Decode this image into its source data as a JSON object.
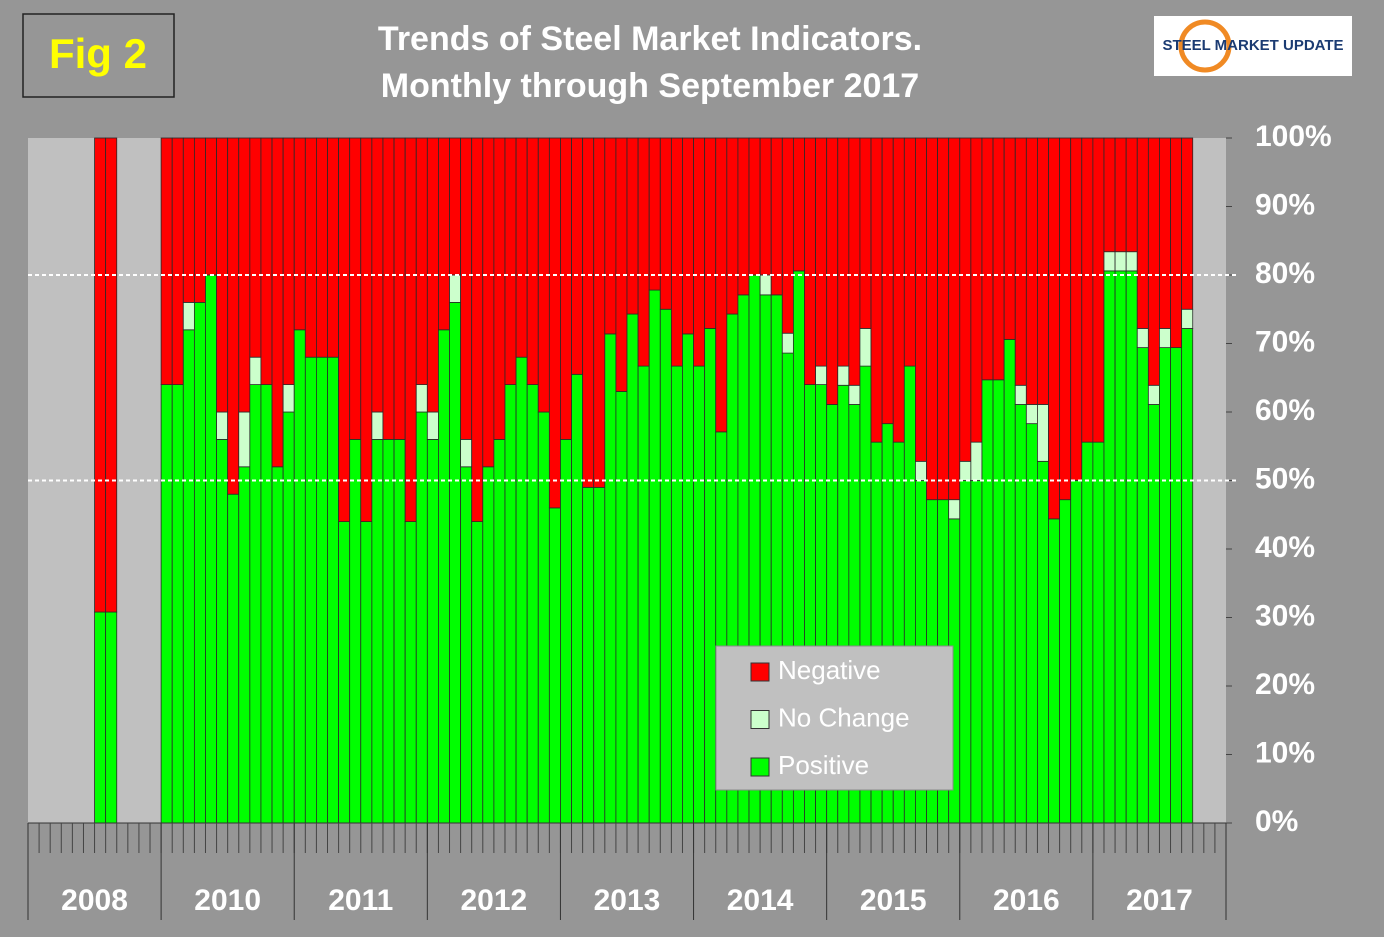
{
  "fig_label": "Fig 2",
  "logo": "STEEL MARKET UPDATE",
  "chart_data": {
    "type": "bar",
    "stacked": true,
    "title": "Trends of Steel Market Indicators.",
    "subtitle": "Monthly through  September 2017",
    "categories": [
      "2008",
      "2008",
      "2008",
      "2008",
      "2008",
      "2008",
      "2008",
      "2008",
      "2008",
      "2008",
      "2008",
      "2008",
      "2010",
      "2010",
      "2010",
      "2010",
      "2010",
      "2010",
      "2010",
      "2010",
      "2010",
      "2010",
      "2010",
      "2010",
      "2011",
      "2011",
      "2011",
      "2011",
      "2011",
      "2011",
      "2011",
      "2011",
      "2011",
      "2011",
      "2011",
      "2011",
      "2012",
      "2012",
      "2012",
      "2012",
      "2012",
      "2012",
      "2012",
      "2012",
      "2012",
      "2012",
      "2012",
      "2012",
      "2013",
      "2013",
      "2013",
      "2013",
      "2013",
      "2013",
      "2013",
      "2013",
      "2013",
      "2013",
      "2013",
      "2013",
      "2014",
      "2014",
      "2014",
      "2014",
      "2014",
      "2014",
      "2014",
      "2014",
      "2014",
      "2014",
      "2014",
      "2014",
      "2015",
      "2015",
      "2015",
      "2015",
      "2015",
      "2015",
      "2015",
      "2015",
      "2015",
      "2015",
      "2015",
      "2015",
      "2016",
      "2016",
      "2016",
      "2016",
      "2016",
      "2016",
      "2016",
      "2016",
      "2016",
      "2016",
      "2016",
      "2016",
      "2017",
      "2017",
      "2017",
      "2017",
      "2017",
      "2017",
      "2017",
      "2017",
      "2017",
      "2017",
      "2017",
      "2017"
    ],
    "series": [
      {
        "name": "Positive",
        "color": "#00ff00",
        "values": [
          null,
          null,
          null,
          null,
          null,
          null,
          30.8,
          30.8,
          null,
          null,
          null,
          null,
          64,
          64,
          72,
          76,
          80,
          56,
          48,
          52,
          64,
          64,
          52,
          60,
          72,
          68,
          68,
          68,
          44,
          56,
          44,
          56,
          56,
          56,
          44,
          60,
          56,
          72,
          76,
          52,
          44,
          52,
          56,
          64,
          68,
          64,
          60,
          46,
          56,
          65.5,
          49,
          49,
          71.4,
          63,
          74.3,
          66.7,
          77.8,
          75,
          66.7,
          71.4,
          66.7,
          72.2,
          57.1,
          74.3,
          77.1,
          80,
          77.1,
          77.1,
          68.6,
          80.6,
          64,
          64,
          61.1,
          63.9,
          61.1,
          66.7,
          55.6,
          58.3,
          55.6,
          66.7,
          50,
          47.2,
          47.2,
          44.4,
          50,
          50,
          64.7,
          64.7,
          70.6,
          61.1,
          58.3,
          52.8,
          44.4,
          47.2,
          50,
          55.6,
          55.6,
          80.6,
          80.6,
          80.6,
          69.4,
          61.1,
          69.4,
          69.4,
          72.2,
          null,
          null,
          null
        ]
      },
      {
        "name": "No Change",
        "color": "#ccffcc",
        "values": [
          null,
          null,
          null,
          null,
          null,
          null,
          0,
          0,
          null,
          null,
          null,
          null,
          0,
          0,
          4,
          0,
          0,
          4,
          0,
          8,
          4,
          0,
          0,
          4,
          0,
          0,
          0,
          0,
          0,
          0,
          0,
          4,
          0,
          0,
          0,
          4,
          4,
          0,
          4,
          4,
          0,
          0,
          0,
          0,
          0,
          0,
          0,
          0,
          0,
          0,
          0,
          0,
          0,
          0,
          0,
          0,
          0,
          0,
          0,
          0,
          0,
          0,
          0,
          0,
          0,
          0,
          2.9,
          0,
          2.9,
          0,
          0,
          2.7,
          0,
          2.8,
          2.8,
          5.5,
          0,
          0,
          0,
          0,
          2.8,
          0,
          0,
          2.8,
          2.8,
          5.6,
          0,
          0,
          0,
          2.8,
          2.8,
          8.3,
          0,
          0,
          0,
          0,
          0,
          2.8,
          2.8,
          2.8,
          2.8,
          2.8,
          2.8,
          0,
          2.8,
          null,
          null,
          null
        ]
      },
      {
        "name": "Negative",
        "color": "#ff0000",
        "values": [
          null,
          null,
          null,
          null,
          null,
          null,
          69.2,
          69.2,
          null,
          null,
          null,
          null,
          36,
          36,
          24,
          24,
          20,
          40,
          52,
          40,
          32,
          36,
          48,
          36,
          28,
          32,
          32,
          32,
          56,
          44,
          56,
          40,
          44,
          44,
          56,
          36,
          40,
          28,
          20,
          44,
          56,
          48,
          44,
          36,
          32,
          36,
          40,
          54,
          44,
          34.5,
          51,
          51,
          28.6,
          37,
          25.7,
          33.3,
          22.2,
          25,
          33.3,
          28.6,
          33.3,
          27.8,
          42.9,
          25.7,
          22.9,
          20,
          20,
          22.9,
          28.5,
          19.4,
          36,
          33.3,
          38.9,
          33.3,
          36.1,
          27.8,
          44.4,
          41.7,
          44.4,
          33.3,
          47.2,
          52.8,
          52.8,
          52.8,
          47.2,
          44.4,
          35.3,
          35.3,
          29.4,
          36.1,
          38.9,
          38.9,
          55.6,
          52.8,
          50,
          44.4,
          44.4,
          16.6,
          16.6,
          16.6,
          27.8,
          36.1,
          27.8,
          30.6,
          25,
          null,
          null,
          null
        ]
      }
    ],
    "ylim": [
      0,
      100
    ],
    "yticks": [
      {
        "value": 0,
        "label": "0%"
      },
      {
        "value": 10,
        "label": "10%"
      },
      {
        "value": 20,
        "label": "20%"
      },
      {
        "value": 30,
        "label": "30%"
      },
      {
        "value": 40,
        "label": "40%"
      },
      {
        "value": 50,
        "label": "50%"
      },
      {
        "value": 60,
        "label": "60%"
      },
      {
        "value": 70,
        "label": "70%"
      },
      {
        "value": 80,
        "label": "80%"
      },
      {
        "value": 90,
        "label": "90%"
      },
      {
        "value": 100,
        "label": "100%"
      }
    ],
    "reference_lines": [
      50,
      80
    ],
    "grid": true,
    "legend_position": "bottom-center"
  }
}
